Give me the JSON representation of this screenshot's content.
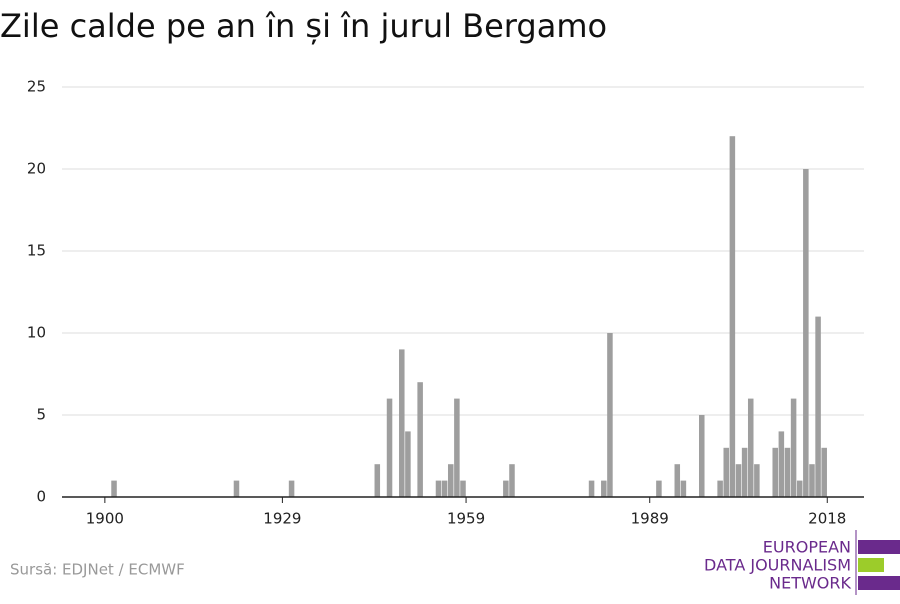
{
  "chart_data": {
    "type": "bar",
    "title": "Zile calde pe an în și în jurul Bergamo",
    "source": "Sursă: EDJNet / ECMWF",
    "logo": [
      "EUROPEAN",
      "DATA JOURNALISM",
      "NETWORK"
    ],
    "x": [
      1901,
      1921,
      1930,
      1944,
      1946,
      1948,
      1949,
      1951,
      1954,
      1955,
      1956,
      1957,
      1958,
      1965,
      1966,
      1979,
      1981,
      1982,
      1990,
      1993,
      1994,
      1997,
      2000,
      2001,
      2002,
      2003,
      2004,
      2005,
      2006,
      2009,
      2010,
      2011,
      2012,
      2013,
      2014,
      2015,
      2016,
      2017
    ],
    "values": [
      1,
      1,
      1,
      2,
      6,
      9,
      4,
      7,
      1,
      1,
      2,
      6,
      1,
      1,
      2,
      1,
      1,
      10,
      1,
      2,
      1,
      5,
      1,
      3,
      22,
      2,
      3,
      6,
      2,
      3,
      4,
      3,
      6,
      1,
      20,
      2,
      11,
      3
    ],
    "color": "#9e9e9e",
    "xlim": [
      1893,
      2024
    ],
    "xticks": [
      1900,
      1929,
      1959,
      1989,
      2018
    ],
    "ylim": [
      0,
      25
    ],
    "yticks": [
      0,
      5,
      10,
      15,
      20,
      25
    ],
    "grid": true
  }
}
